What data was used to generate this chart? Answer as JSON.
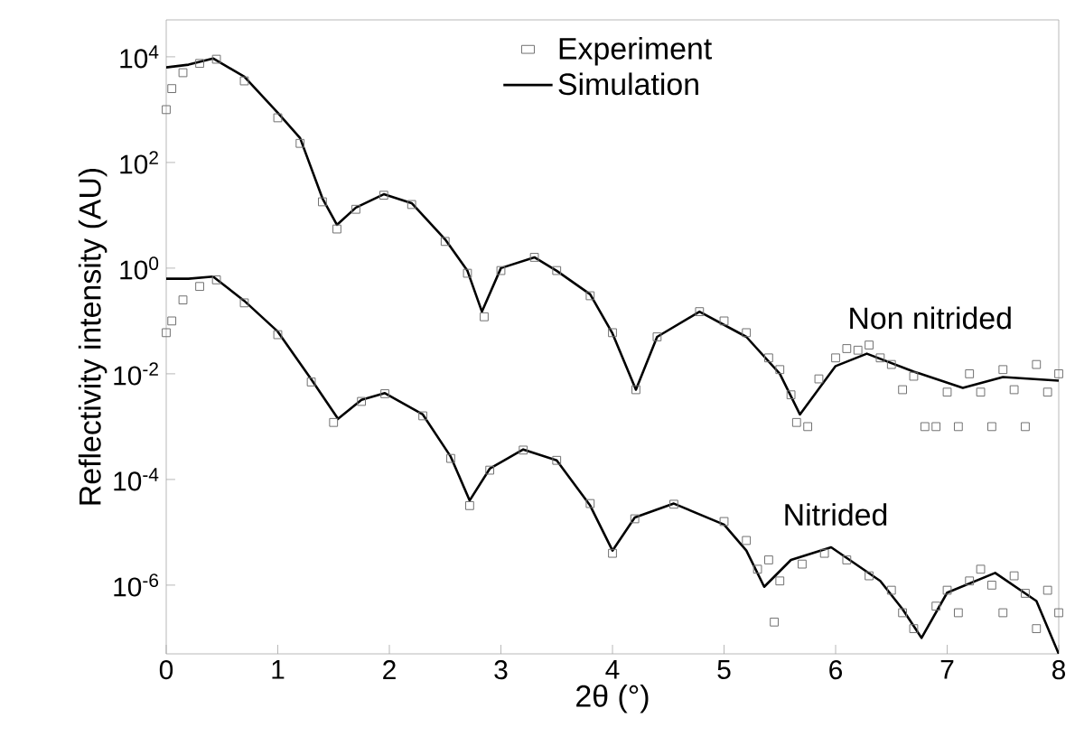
{
  "chart_data": {
    "type": "scatter",
    "xlabel": "2θ (°)",
    "ylabel": "Reflectivity intensity (AU)",
    "log": "y",
    "legend": "top",
    "grid": false,
    "xlim": [
      0,
      8
    ],
    "xticks": [
      0,
      1,
      2,
      3,
      4,
      5,
      6,
      7,
      8
    ],
    "ylim": [
      5e-08,
      50000.0
    ],
    "yticks": [
      {
        "value": 1e-06,
        "label": "10$^{-6}$"
      },
      {
        "value": 0.0001,
        "label": "10$^{-4}$"
      },
      {
        "value": 0.01,
        "label": "10$^{-2}$"
      },
      {
        "value": 1,
        "label": "10$^{0}$"
      },
      {
        "value": 100,
        "label": "10$^{2}$"
      },
      {
        "value": 10000,
        "label": "10$^{4}$"
      }
    ],
    "annotations": [
      "Non nitrided",
      "Nitrided"
    ],
    "series": [
      {
        "name": "Experiment",
        "marker": "square",
        "color": "#707070",
        "x": [
          0,
          0.05,
          0.15,
          0.3,
          0.45,
          0.7,
          1.0,
          1.2,
          1.4,
          1.53,
          1.7,
          1.95,
          2.2,
          2.5,
          2.7,
          2.85,
          3.0,
          3.3,
          3.5,
          3.8,
          4.0,
          4.21,
          4.4,
          4.78,
          5.0,
          5.2,
          5.4,
          5.5,
          5.6,
          5.65,
          5.75,
          5.85,
          6.0,
          6.1,
          6.2,
          6.3,
          6.4,
          6.5,
          6.6,
          6.7,
          6.8,
          6.9,
          7.0,
          7.1,
          7.2,
          7.3,
          7.4,
          7.5,
          7.6,
          7.7,
          7.8,
          7.9,
          8.0
        ],
        "values": [
          1000,
          2500,
          5000,
          7500,
          9000,
          3500,
          700,
          230,
          18,
          5.5,
          13,
          24,
          16,
          3.2,
          0.8,
          0.12,
          0.9,
          1.6,
          0.9,
          0.3,
          0.06,
          0.005,
          0.05,
          0.15,
          0.1,
          0.06,
          0.02,
          0.012,
          0.004,
          0.0012,
          0.001,
          0.008,
          0.02,
          0.03,
          0.028,
          0.035,
          0.02,
          0.015,
          0.005,
          0.009,
          0.001,
          0.001,
          0.0045,
          0.001,
          0.01,
          0.0045,
          0.001,
          0.012,
          0.005,
          0.001,
          0.015,
          0.0045,
          0.01
        ]
      },
      {
        "name": "Simulation",
        "type": "line",
        "marker": "none",
        "line_style": "solid",
        "color": "#000000",
        "x": [
          0,
          0.2,
          0.42,
          0.7,
          1.0,
          1.2,
          1.4,
          1.53,
          1.7,
          1.95,
          2.2,
          2.5,
          2.7,
          2.83,
          3.0,
          3.3,
          3.5,
          3.8,
          4.0,
          4.21,
          4.4,
          4.78,
          5.2,
          5.5,
          5.68,
          6.0,
          6.28,
          6.7,
          7.14,
          7.5,
          8.0
        ],
        "values": [
          6300,
          7100,
          9300,
          4200,
          870,
          290,
          21,
          6.6,
          14,
          25,
          17,
          3.5,
          0.89,
          0.15,
          1.0,
          1.6,
          0.89,
          0.32,
          0.058,
          0.005,
          0.05,
          0.15,
          0.05,
          0.01,
          0.0017,
          0.014,
          0.024,
          0.011,
          0.0054,
          0.0087,
          0.0074
        ]
      },
      {
        "marker": "square",
        "color": "#707070",
        "x": [
          0,
          0.05,
          0.15,
          0.3,
          0.45,
          0.7,
          1.0,
          1.3,
          1.5,
          1.75,
          1.96,
          2.3,
          2.55,
          2.72,
          2.9,
          3.2,
          3.5,
          3.8,
          4.0,
          4.2,
          4.55,
          5.0,
          5.2,
          5.3,
          5.4,
          5.45,
          5.5,
          5.7,
          5.9,
          6.1,
          6.3,
          6.5,
          6.6,
          6.7,
          6.9,
          7.0,
          7.1,
          7.2,
          7.3,
          7.4,
          7.5,
          7.6,
          7.7,
          7.8,
          7.9,
          8.0
        ],
        "values": [
          0.06,
          0.1,
          0.25,
          0.45,
          0.6,
          0.22,
          0.055,
          0.007,
          0.0012,
          0.003,
          0.0042,
          0.0016,
          0.00025,
          3.2e-05,
          0.00015,
          0.00036,
          0.00023,
          3.5e-05,
          4e-06,
          1.8e-05,
          3.4e-05,
          1.6e-05,
          7e-06,
          2e-06,
          3e-06,
          2e-07,
          1.2e-06,
          2.5e-06,
          4e-06,
          3e-06,
          1.5e-06,
          8e-07,
          3e-07,
          1.5e-07,
          4e-07,
          8e-07,
          3e-07,
          1.2e-06,
          2e-06,
          1e-06,
          3e-07,
          1.5e-06,
          7e-07,
          1.5e-07,
          8e-07,
          3e-07
        ]
      },
      {
        "type": "line",
        "marker": "none",
        "line_style": "solid",
        "color": "#000000",
        "x": [
          0,
          0.2,
          0.42,
          0.7,
          1.0,
          1.3,
          1.54,
          1.75,
          1.96,
          2.3,
          2.55,
          2.72,
          2.9,
          3.2,
          3.5,
          3.8,
          4.0,
          4.2,
          4.55,
          5.0,
          5.2,
          5.36,
          5.6,
          5.96,
          6.4,
          6.6,
          6.77,
          7.0,
          7.43,
          7.8,
          8.0
        ],
        "values": [
          0.63,
          0.63,
          0.69,
          0.24,
          0.063,
          0.0079,
          0.0014,
          0.0032,
          0.0043,
          0.0017,
          0.00027,
          4e-05,
          0.00016,
          0.00037,
          0.00023,
          3.2e-05,
          4.5e-06,
          1.9e-05,
          3.5e-05,
          1.4e-05,
          4.5e-06,
          9.3e-07,
          3e-06,
          5.2e-06,
          1.2e-06,
          3.5e-07,
          1e-07,
          7.2e-07,
          1.7e-06,
          5e-07,
          5e-08
        ]
      }
    ]
  }
}
